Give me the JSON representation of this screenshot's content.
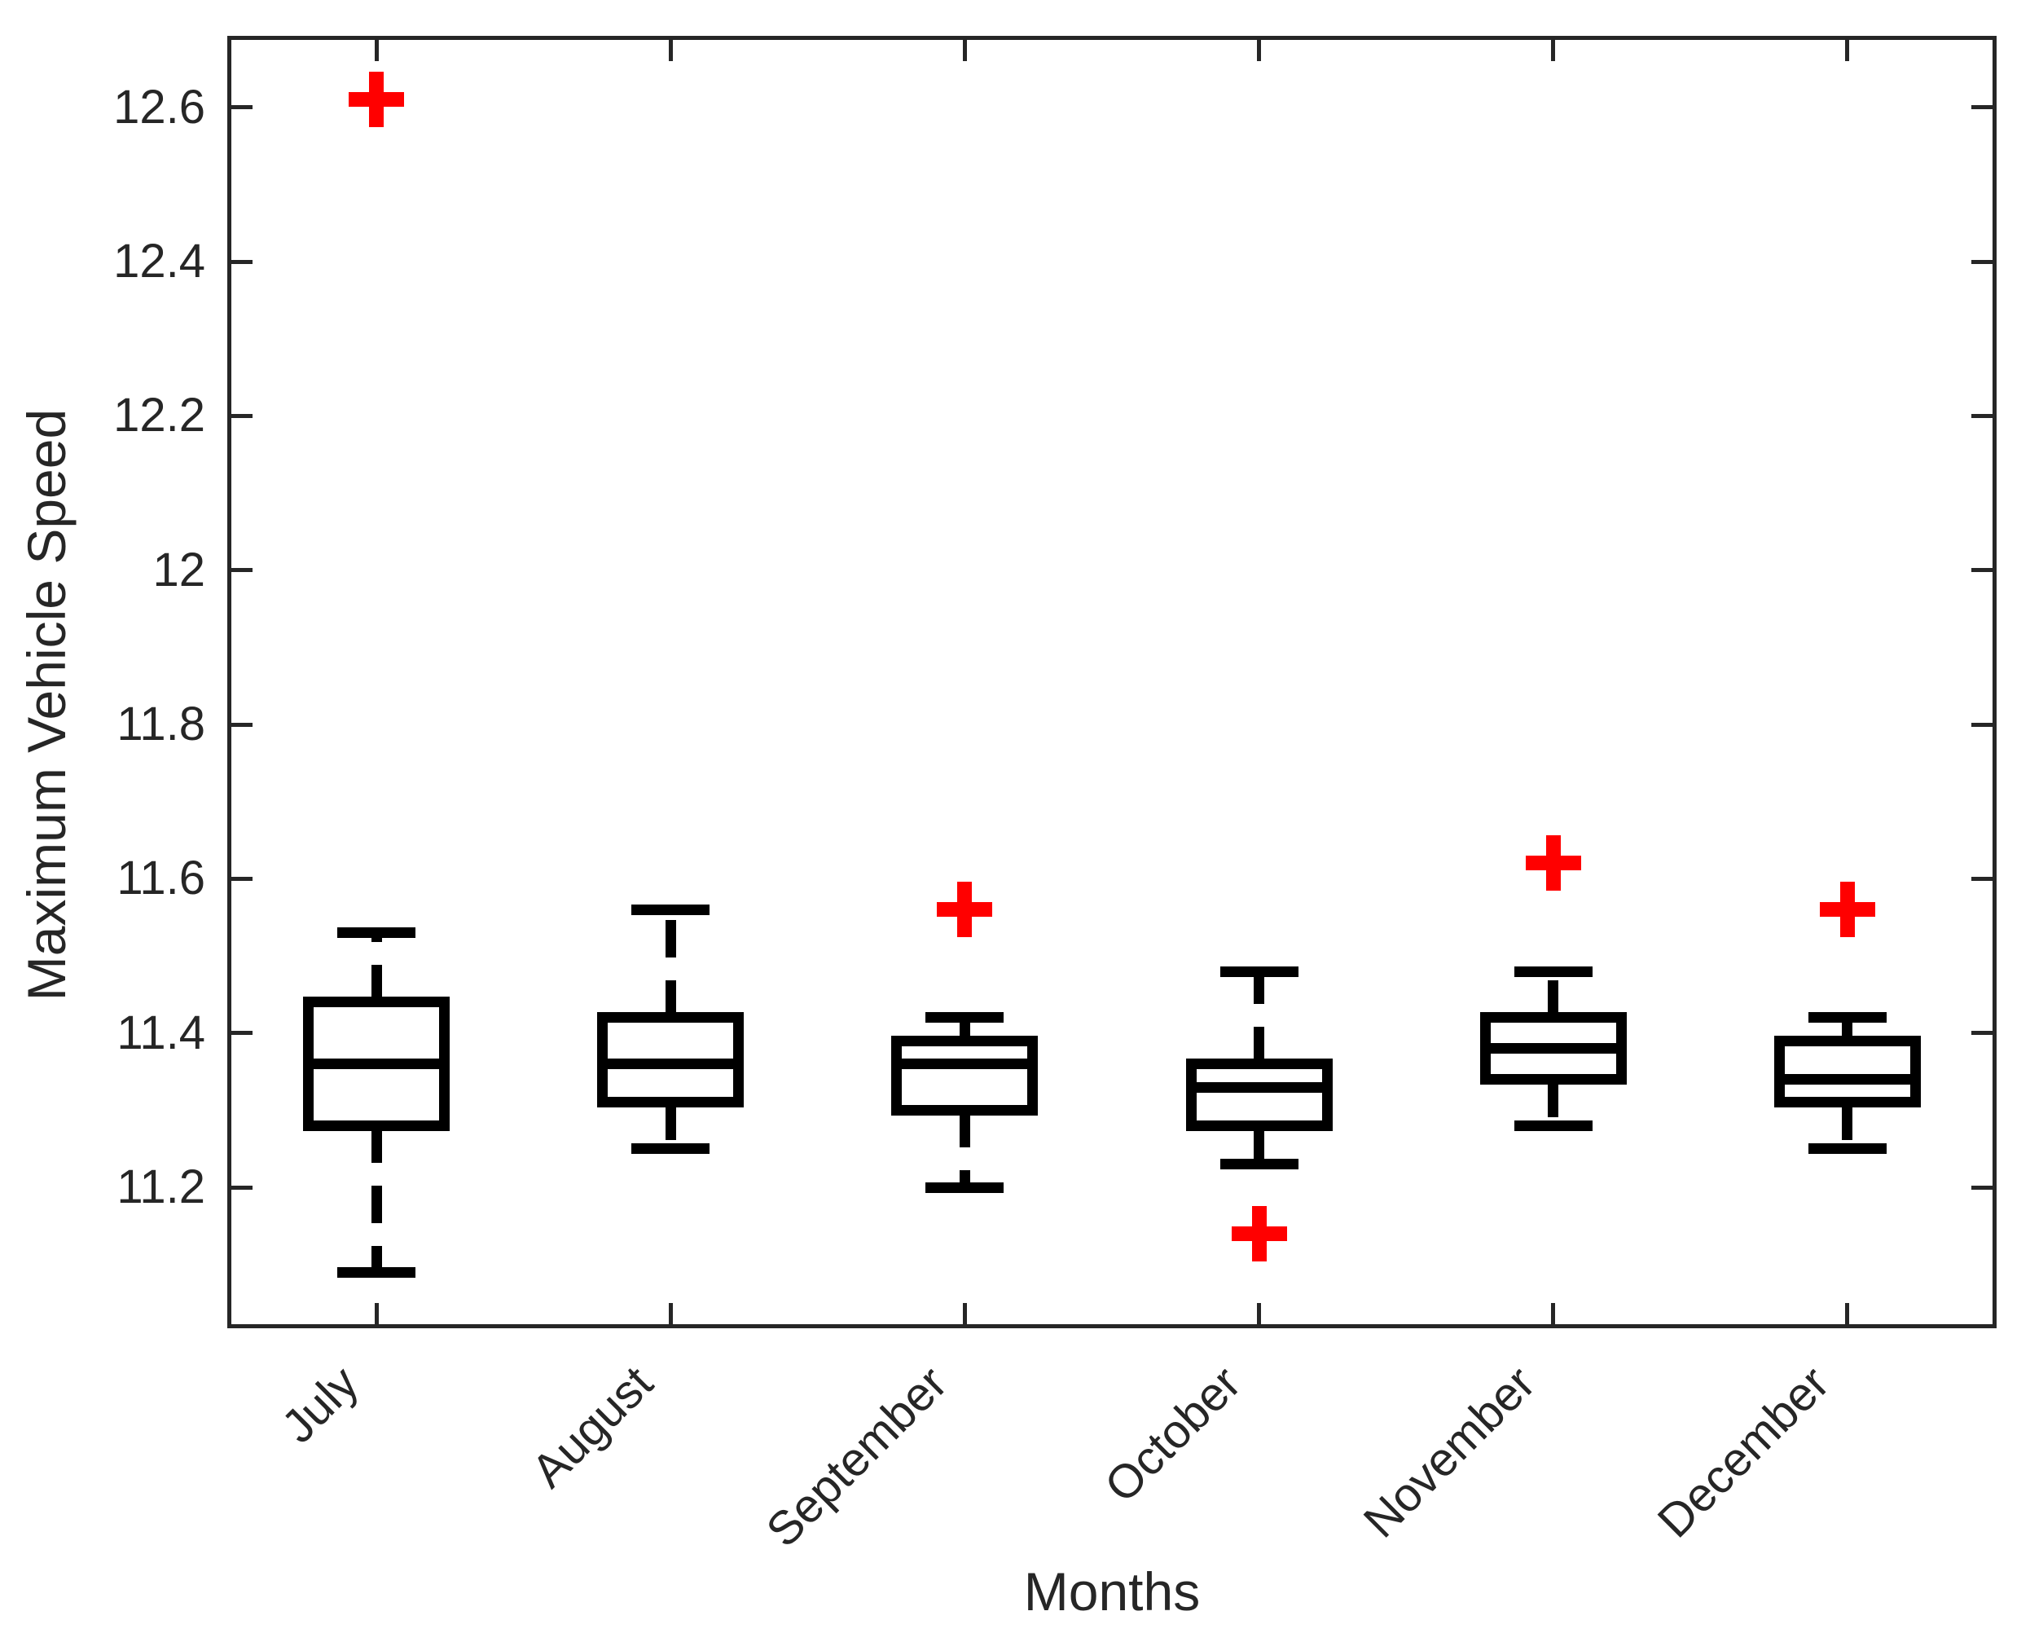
{
  "chart_data": {
    "type": "boxplot",
    "title": "",
    "xlabel": "Months",
    "ylabel": "Maximum Vehicle Speed",
    "categories": [
      "July",
      "August",
      "September",
      "October",
      "November",
      "December"
    ],
    "ylim": [
      11.02,
      12.69
    ],
    "y_ticks": [
      11.2,
      11.4,
      11.6,
      11.8,
      12,
      12.2,
      12.4,
      12.6
    ],
    "y_tick_labels": [
      "11.2",
      "11.4",
      "11.6",
      "11.8",
      "12",
      "12.2",
      "12.4",
      "12.6"
    ],
    "x_tick_rotation_deg": 45,
    "grid": false,
    "legend": false,
    "boxes": [
      {
        "month": "July",
        "whisker_low": 11.09,
        "q1": 11.28,
        "median": 11.36,
        "q3": 11.44,
        "whisker_high": 11.53,
        "outliers": [
          12.61
        ]
      },
      {
        "month": "August",
        "whisker_low": 11.25,
        "q1": 11.31,
        "median": 11.36,
        "q3": 11.42,
        "whisker_high": 11.56,
        "outliers": []
      },
      {
        "month": "September",
        "whisker_low": 11.2,
        "q1": 11.3,
        "median": 11.36,
        "q3": 11.39,
        "whisker_high": 11.42,
        "outliers": [
          11.56
        ]
      },
      {
        "month": "October",
        "whisker_low": 11.23,
        "q1": 11.28,
        "median": 11.33,
        "q3": 11.36,
        "whisker_high": 11.48,
        "outliers": [
          11.14
        ]
      },
      {
        "month": "November",
        "whisker_low": 11.28,
        "q1": 11.34,
        "median": 11.38,
        "q3": 11.42,
        "whisker_high": 11.48,
        "outliers": [
          11.62
        ]
      },
      {
        "month": "December",
        "whisker_low": 11.25,
        "q1": 11.31,
        "median": 11.34,
        "q3": 11.39,
        "whisker_high": 11.42,
        "outliers": [
          11.56
        ]
      }
    ],
    "colors": {
      "box_line": "#000000",
      "median_line": "#000000",
      "whisker_line": "#000000",
      "outlier_marker": "#ff0000",
      "axis": "#262626",
      "text": "#262626",
      "background": "#ffffff"
    },
    "outlier_marker_shape": "plus"
  }
}
